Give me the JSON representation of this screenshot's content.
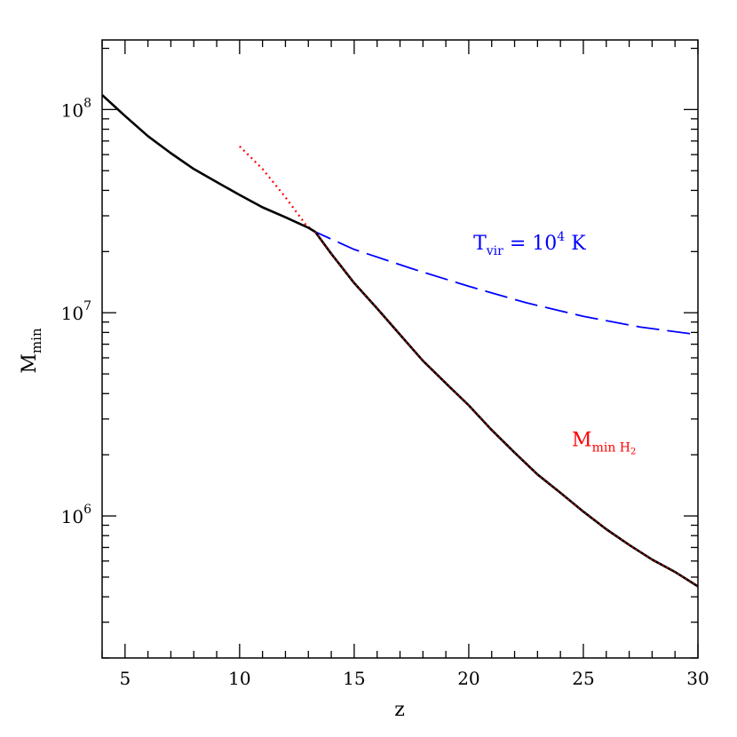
{
  "chart_data": {
    "type": "line",
    "xlabel": "z",
    "ylabel": "M",
    "ylabel_sub": "min",
    "xlim": [
      4,
      30
    ],
    "ylim": [
      200000.0,
      220000000.0
    ],
    "yscale": "log",
    "grid": false,
    "x_ticks": [
      5,
      10,
      15,
      20,
      25,
      30
    ],
    "x_tick_labels": [
      "5",
      "10",
      "15",
      "20",
      "25",
      "30"
    ],
    "y_ticks": [
      1000000.0,
      10000000.0,
      100000000.0
    ],
    "y_tick_labels": [
      {
        "base": "10",
        "exp": "6"
      },
      {
        "base": "10",
        "exp": "7"
      },
      {
        "base": "10",
        "exp": "8"
      }
    ],
    "colors": {
      "combined": "#000000",
      "tvir": "#0000ff",
      "h2": "#ff0000"
    },
    "series": [
      {
        "key": "tvir",
        "style": "dashed",
        "x": [
          4,
          5,
          6,
          7,
          8,
          9,
          10,
          11,
          12,
          13,
          13.3,
          15,
          17.5,
          20,
          22.5,
          25,
          27.5,
          30
        ],
        "y": [
          118000000.0,
          93000000.0,
          74000000.0,
          61000000.0,
          51000000.0,
          44000000.0,
          38000000.0,
          33000000.0,
          29500000.0,
          26200000.0,
          25000000.0,
          20500000.0,
          16500000.0,
          13500000.0,
          11200000.0,
          9600000.0,
          8500000.0,
          7800000.0
        ]
      },
      {
        "key": "h2",
        "style": "dotted",
        "x": [
          10,
          11,
          12,
          12.9,
          13.3,
          14,
          15,
          16,
          17,
          18,
          19,
          20,
          21,
          22,
          23,
          24,
          25,
          26,
          27,
          28,
          29,
          30
        ],
        "y": [
          66000000.0,
          51000000.0,
          37000000.0,
          27000000.0,
          25000000.0,
          19500000.0,
          14000000.0,
          10500000.0,
          7800000.0,
          5800000.0,
          4500000.0,
          3500000.0,
          2650000.0,
          2050000.0,
          1600000.0,
          1300000.0,
          1050000.0,
          860000.0,
          720000.0,
          610000.0,
          530000.0,
          450000.0
        ]
      },
      {
        "key": "combined",
        "style": "solid",
        "x": [
          4,
          5,
          6,
          7,
          8,
          9,
          10,
          11,
          12,
          13,
          13.3,
          14,
          15,
          16,
          17,
          18,
          19,
          20,
          21,
          22,
          23,
          24,
          25,
          26,
          27,
          28,
          29,
          30
        ],
        "y": [
          118000000.0,
          93000000.0,
          74000000.0,
          61000000.0,
          51000000.0,
          44000000.0,
          38000000.0,
          33000000.0,
          29500000.0,
          26200000.0,
          25000000.0,
          19500000.0,
          14000000.0,
          10500000.0,
          7800000.0,
          5800000.0,
          4500000.0,
          3500000.0,
          2650000.0,
          2050000.0,
          1600000.0,
          1300000.0,
          1050000.0,
          860000.0,
          720000.0,
          610000.0,
          530000.0,
          450000.0
        ]
      }
    ],
    "annotations": [
      {
        "key": "tvir-label",
        "color": "#0000ff",
        "at": [
          20.2,
          20500000.0
        ],
        "main": "T",
        "sub": "vir",
        "rest": " = 10",
        "sup": "4",
        "tail": " K"
      },
      {
        "key": "h2-label",
        "color": "#ff0000",
        "at": [
          24.5,
          2200000.0
        ],
        "main": "M",
        "sub": "min H",
        "subsub": "2"
      }
    ]
  }
}
